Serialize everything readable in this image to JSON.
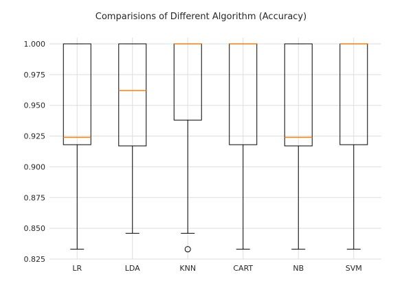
{
  "chart_data": {
    "type": "box",
    "title": "Comparisions of Different Algorithm (Accuracy)",
    "xlabel": "",
    "ylabel": "",
    "ylim": [
      0.825,
      1.005
    ],
    "yticks": [
      "0.825",
      "0.850",
      "0.875",
      "0.900",
      "0.925",
      "0.950",
      "0.975",
      "1.000"
    ],
    "grid": true,
    "categories": [
      "LR",
      "LDA",
      "KNN",
      "CART",
      "NB",
      "SVM"
    ],
    "boxes": [
      {
        "name": "LR",
        "whisker_low": 0.833,
        "q1": 0.918,
        "median": 0.924,
        "q3": 1.0,
        "whisker_high": 1.0,
        "outliers": []
      },
      {
        "name": "LDA",
        "whisker_low": 0.846,
        "q1": 0.917,
        "median": 0.962,
        "q3": 1.0,
        "whisker_high": 1.0,
        "outliers": []
      },
      {
        "name": "KNN",
        "whisker_low": 0.846,
        "q1": 0.938,
        "median": 1.0,
        "q3": 1.0,
        "whisker_high": 1.0,
        "outliers": [
          0.833
        ]
      },
      {
        "name": "CART",
        "whisker_low": 0.833,
        "q1": 0.918,
        "median": 1.0,
        "q3": 1.0,
        "whisker_high": 1.0,
        "outliers": []
      },
      {
        "name": "NB",
        "whisker_low": 0.833,
        "q1": 0.917,
        "median": 0.924,
        "q3": 1.0,
        "whisker_high": 1.0,
        "outliers": []
      },
      {
        "name": "SVM",
        "whisker_low": 0.833,
        "q1": 0.918,
        "median": 1.0,
        "q3": 1.0,
        "whisker_high": 1.0,
        "outliers": []
      }
    ],
    "colors": {
      "box": "#000000",
      "median": "#ff7f0e",
      "grid": "#dddddd",
      "text": "#262626"
    }
  }
}
